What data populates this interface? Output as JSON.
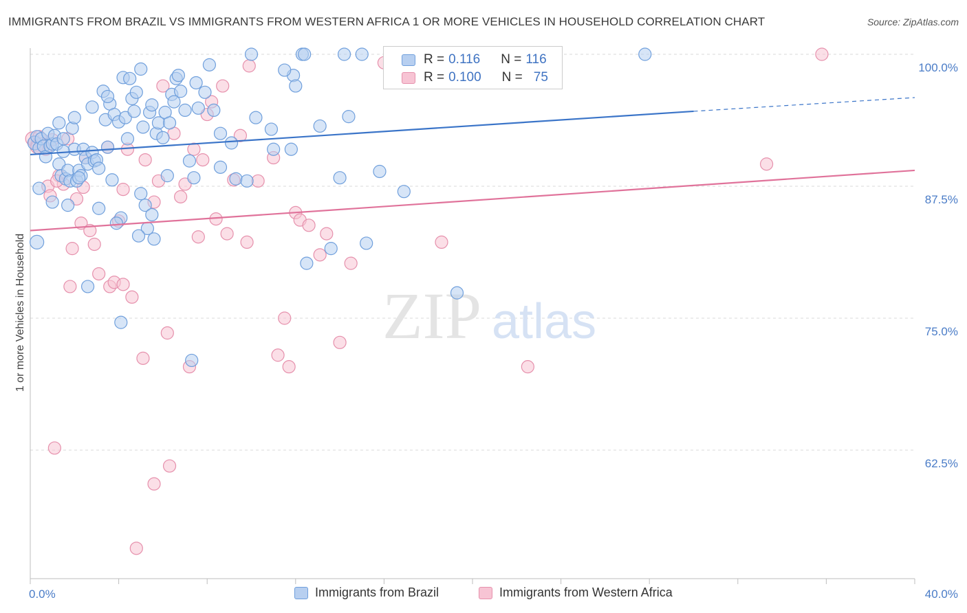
{
  "title": "IMMIGRANTS FROM BRAZIL VS IMMIGRANTS FROM WESTERN AFRICA 1 OR MORE VEHICLES IN HOUSEHOLD CORRELATION CHART",
  "source": "Source: ZipAtlas.com",
  "watermark": {
    "zip": "ZIP",
    "atlas": "atlas"
  },
  "legend": {
    "r_label": "R =",
    "n_label": "N =",
    "brazil": {
      "r": "0.116",
      "n": "116"
    },
    "western_africa": {
      "r": "0.100",
      "n": "75"
    }
  },
  "colors": {
    "brazil_fill": "#b7cff0",
    "brazil_stroke": "#6f9fdc",
    "brazil_line": "#3a74c8",
    "wafrica_fill": "#f7c4d4",
    "wafrica_stroke": "#e690ac",
    "wafrica_line": "#e0729a",
    "tick": "#4a7cc7",
    "grid": "#d9d9d9"
  },
  "chart_data": {
    "type": "scatter",
    "title": "IMMIGRANTS FROM BRAZIL VS IMMIGRANTS FROM WESTERN AFRICA 1 OR MORE VEHICLES IN HOUSEHOLD CORRELATION CHART",
    "xlabel": "",
    "ylabel": "1 or more Vehicles in Household",
    "xlim": [
      0,
      40
    ],
    "ylim": [
      52,
      101
    ],
    "x_tick_labels": [
      "0.0%",
      "40.0%"
    ],
    "y_ticks": [
      62.5,
      75.0,
      87.5,
      100.0
    ],
    "y_tick_labels": [
      "62.5%",
      "75.0%",
      "87.5%",
      "100.0%"
    ],
    "grid": "horizontal dashed",
    "legend_position": "top-center",
    "series": [
      {
        "name": "Immigrants from Brazil",
        "trend": {
          "x": [
            0,
            30
          ],
          "y": [
            90.5,
            94.6
          ],
          "dashed_to": [
            40,
            95.9
          ]
        },
        "points": [
          [
            0.2,
            91.6
          ],
          [
            0.3,
            92.2
          ],
          [
            0.4,
            91.1
          ],
          [
            0.5,
            92.0
          ],
          [
            0.6,
            91.3
          ],
          [
            0.7,
            90.3
          ],
          [
            0.8,
            92.5
          ],
          [
            0.9,
            91.3
          ],
          [
            1.0,
            91.5
          ],
          [
            1.1,
            92.3
          ],
          [
            1.2,
            91.5
          ],
          [
            1.3,
            89.6
          ],
          [
            1.4,
            88.5
          ],
          [
            1.5,
            92.0
          ],
          [
            1.6,
            88.2
          ],
          [
            1.7,
            89.0
          ],
          [
            1.8,
            88.0
          ],
          [
            1.9,
            93.0
          ],
          [
            2.0,
            91.0
          ],
          [
            2.1,
            88.0
          ],
          [
            2.2,
            89.0
          ],
          [
            2.3,
            88.5
          ],
          [
            2.4,
            91.0
          ],
          [
            2.5,
            90.2
          ],
          [
            2.6,
            89.6
          ],
          [
            2.8,
            90.7
          ],
          [
            2.9,
            89.9
          ],
          [
            3.0,
            90.0
          ],
          [
            3.1,
            89.2
          ],
          [
            3.3,
            96.5
          ],
          [
            3.4,
            93.8
          ],
          [
            3.5,
            91.2
          ],
          [
            3.6,
            95.3
          ],
          [
            3.7,
            88.1
          ],
          [
            3.8,
            94.3
          ],
          [
            4.0,
            93.6
          ],
          [
            4.1,
            84.5
          ],
          [
            4.2,
            97.8
          ],
          [
            4.3,
            94.0
          ],
          [
            4.5,
            97.7
          ],
          [
            4.6,
            95.8
          ],
          [
            4.7,
            94.6
          ],
          [
            4.8,
            96.4
          ],
          [
            5.0,
            98.6
          ],
          [
            5.1,
            93.1
          ],
          [
            5.2,
            85.7
          ],
          [
            5.3,
            83.5
          ],
          [
            5.4,
            94.5
          ],
          [
            5.5,
            95.2
          ],
          [
            5.7,
            92.5
          ],
          [
            5.8,
            93.5
          ],
          [
            6.0,
            92.1
          ],
          [
            6.1,
            94.5
          ],
          [
            6.3,
            93.5
          ],
          [
            6.4,
            96.2
          ],
          [
            6.5,
            95.5
          ],
          [
            6.6,
            97.7
          ],
          [
            6.8,
            96.5
          ],
          [
            7.0,
            94.7
          ],
          [
            7.2,
            89.9
          ],
          [
            7.4,
            88.3
          ],
          [
            7.6,
            94.9
          ],
          [
            7.9,
            96.4
          ],
          [
            8.1,
            99.0
          ],
          [
            8.3,
            94.7
          ],
          [
            8.6,
            89.3
          ],
          [
            9.1,
            91.6
          ],
          [
            9.3,
            88.2
          ],
          [
            10.2,
            94.0
          ],
          [
            10.9,
            92.9
          ],
          [
            11.0,
            91.0
          ],
          [
            11.8,
            91.0
          ],
          [
            11.9,
            98.0
          ],
          [
            12.3,
            100.0
          ],
          [
            12.4,
            100.0
          ],
          [
            12.5,
            80.2
          ],
          [
            13.1,
            93.2
          ],
          [
            13.6,
            81.6
          ],
          [
            14.0,
            88.3
          ],
          [
            14.2,
            100.0
          ],
          [
            14.4,
            94.1
          ],
          [
            15.2,
            82.1
          ],
          [
            15.8,
            88.9
          ],
          [
            16.3,
            100.0
          ],
          [
            16.9,
            87.0
          ],
          [
            19.3,
            77.4
          ],
          [
            27.8,
            100.0
          ],
          [
            0.4,
            87.3
          ],
          [
            1.0,
            86.0
          ],
          [
            1.7,
            85.7
          ],
          [
            2.2,
            88.3
          ],
          [
            2.6,
            78.0
          ],
          [
            3.1,
            85.4
          ],
          [
            3.9,
            84.0
          ],
          [
            4.1,
            74.6
          ],
          [
            4.9,
            82.8
          ],
          [
            5.0,
            86.8
          ],
          [
            5.5,
            84.8
          ],
          [
            5.6,
            82.5
          ],
          [
            7.3,
            71.0
          ],
          [
            0.3,
            82.2
          ],
          [
            3.5,
            96.0
          ],
          [
            1.3,
            93.5
          ],
          [
            2.0,
            94.0
          ],
          [
            4.4,
            92.0
          ],
          [
            6.7,
            98.0
          ],
          [
            7.5,
            97.3
          ],
          [
            10.0,
            100.0
          ],
          [
            8.6,
            92.5
          ],
          [
            9.8,
            88.0
          ],
          [
            11.5,
            98.5
          ],
          [
            12.0,
            97.0
          ],
          [
            15.0,
            100.0
          ],
          [
            2.8,
            95.0
          ],
          [
            1.5,
            90.8
          ],
          [
            6.2,
            88.5
          ]
        ]
      },
      {
        "name": "Immigrants from Western Africa",
        "trend": {
          "x": [
            0,
            40
          ],
          "y": [
            83.3,
            89.0
          ]
        },
        "points": [
          [
            0.1,
            92.0
          ],
          [
            0.2,
            91.7
          ],
          [
            0.3,
            91.4
          ],
          [
            0.4,
            92.2
          ],
          [
            0.5,
            91.5
          ],
          [
            0.7,
            91.0
          ],
          [
            0.8,
            87.5
          ],
          [
            0.9,
            86.6
          ],
          [
            1.0,
            91.9
          ],
          [
            1.1,
            62.7
          ],
          [
            1.3,
            88.5
          ],
          [
            1.5,
            87.7
          ],
          [
            1.7,
            92.0
          ],
          [
            1.8,
            78.0
          ],
          [
            1.9,
            81.6
          ],
          [
            2.1,
            86.3
          ],
          [
            2.3,
            84.0
          ],
          [
            2.5,
            90.2
          ],
          [
            2.7,
            83.3
          ],
          [
            2.9,
            82.0
          ],
          [
            3.1,
            79.2
          ],
          [
            3.5,
            91.2
          ],
          [
            3.6,
            78.0
          ],
          [
            3.8,
            78.4
          ],
          [
            4.0,
            84.2
          ],
          [
            4.2,
            78.2
          ],
          [
            4.4,
            91.0
          ],
          [
            4.6,
            77.0
          ],
          [
            5.1,
            71.2
          ],
          [
            5.2,
            90.0
          ],
          [
            5.6,
            86.0
          ],
          [
            5.8,
            88.0
          ],
          [
            6.0,
            97.0
          ],
          [
            6.2,
            73.6
          ],
          [
            6.3,
            61.0
          ],
          [
            6.5,
            92.5
          ],
          [
            6.8,
            86.5
          ],
          [
            7.0,
            87.7
          ],
          [
            7.2,
            70.4
          ],
          [
            7.4,
            91.0
          ],
          [
            7.6,
            82.7
          ],
          [
            7.8,
            90.0
          ],
          [
            8.0,
            94.3
          ],
          [
            8.2,
            95.5
          ],
          [
            8.4,
            84.4
          ],
          [
            8.7,
            97.0
          ],
          [
            8.9,
            83.0
          ],
          [
            9.2,
            88.1
          ],
          [
            9.5,
            92.3
          ],
          [
            9.8,
            82.2
          ],
          [
            10.3,
            88.0
          ],
          [
            11.0,
            90.2
          ],
          [
            11.2,
            71.5
          ],
          [
            11.5,
            75.0
          ],
          [
            11.7,
            70.4
          ],
          [
            12.0,
            85.0
          ],
          [
            12.2,
            84.3
          ],
          [
            12.6,
            83.8
          ],
          [
            13.1,
            81.0
          ],
          [
            13.4,
            83.0
          ],
          [
            14.0,
            72.7
          ],
          [
            14.5,
            80.2
          ],
          [
            16.0,
            99.2
          ],
          [
            16.8,
            100.0
          ],
          [
            18.6,
            82.2
          ],
          [
            22.5,
            70.4
          ],
          [
            33.3,
            89.6
          ],
          [
            35.8,
            100.0
          ],
          [
            0.3,
            91.2
          ],
          [
            1.2,
            88.0
          ],
          [
            2.4,
            87.4
          ],
          [
            4.2,
            87.2
          ],
          [
            5.6,
            59.3
          ],
          [
            4.8,
            53.2
          ],
          [
            9.9,
            98.9
          ]
        ]
      }
    ]
  },
  "bottom_legend": {
    "brazil": "Immigrants from Brazil",
    "western_africa": "Immigrants from Western Africa"
  }
}
